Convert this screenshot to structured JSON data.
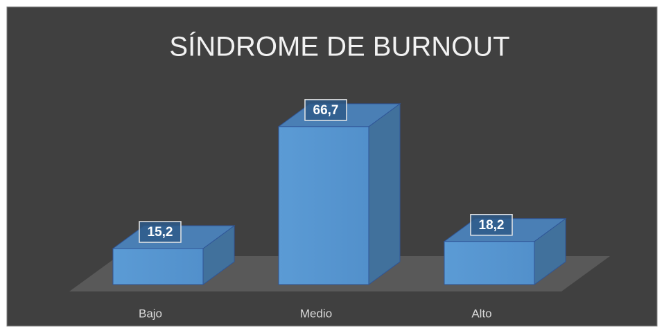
{
  "chart_data": {
    "type": "bar3d",
    "title": "SÍNDROME DE BURNOUT",
    "categories": [
      "Bajo",
      "Medio",
      "Alto"
    ],
    "values": [
      15.2,
      66.7,
      18.2
    ],
    "value_labels": [
      "15,2",
      "66,7",
      "18,2"
    ],
    "color": "#5b9bd5"
  }
}
